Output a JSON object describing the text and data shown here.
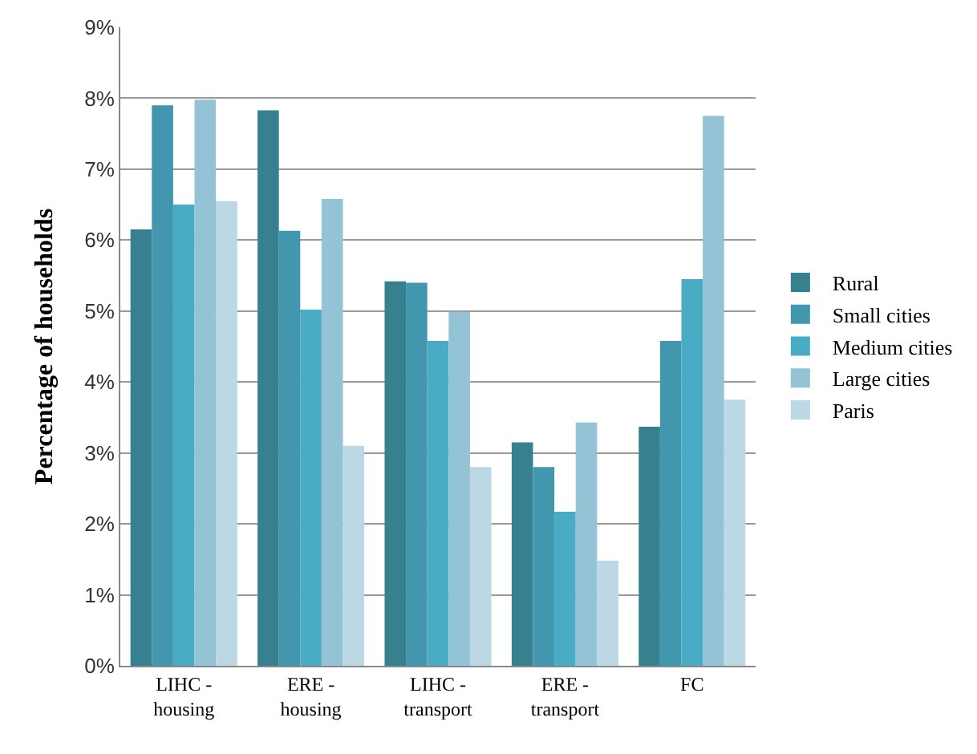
{
  "chart_data": {
    "type": "bar",
    "ylabel": "Percentage of households",
    "categories": [
      "LIHC -\nhousing",
      "ERE -\nhousing",
      "LIHC -\ntransport",
      "ERE -\ntransport",
      "FC"
    ],
    "series": [
      {
        "name": "Rural",
        "color": "#37808f",
        "values": [
          6.15,
          7.83,
          5.42,
          3.15,
          3.37
        ]
      },
      {
        "name": "Small cities",
        "color": "#4297ae",
        "values": [
          7.9,
          6.13,
          5.4,
          2.8,
          4.58
        ]
      },
      {
        "name": "Medium cities",
        "color": "#4aabc5",
        "values": [
          6.5,
          5.02,
          4.58,
          2.17,
          5.45
        ]
      },
      {
        "name": "Large cities",
        "color": "#93c3d5",
        "values": [
          7.98,
          6.58,
          4.99,
          3.43,
          7.75
        ]
      },
      {
        "name": "Paris",
        "color": "#bcd8e4",
        "values": [
          6.55,
          3.1,
          2.8,
          1.48,
          3.75
        ]
      }
    ],
    "ylim": [
      0,
      9
    ],
    "yticks": [
      {
        "value": 0,
        "label": "0%"
      },
      {
        "value": 1,
        "label": "1%"
      },
      {
        "value": 2,
        "label": "2%"
      },
      {
        "value": 3,
        "label": "3%"
      },
      {
        "value": 4,
        "label": "4%"
      },
      {
        "value": 5,
        "label": "5%"
      },
      {
        "value": 6,
        "label": "6%"
      },
      {
        "value": 7,
        "label": "7%"
      },
      {
        "value": 8,
        "label": "8%"
      },
      {
        "value": 9,
        "label": "9%"
      }
    ],
    "grid": "y",
    "legend": "right"
  }
}
